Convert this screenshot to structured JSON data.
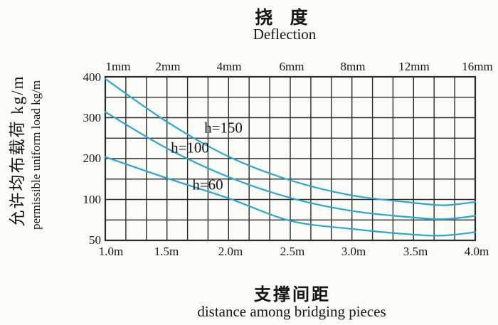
{
  "header": {
    "title_zh": "挠 度",
    "title_en": "Deflection"
  },
  "footer": {
    "title_zh": "支撑间距",
    "title_en": "distance among bridging pieces"
  },
  "y_axis_title": {
    "zh": "允许均布载荷 kg/m",
    "en": "permissible uniform load kg/m"
  },
  "chart_data": {
    "type": "line",
    "title_zh": "挠度",
    "title_en": "Deflection",
    "top_axis": {
      "ticks": [
        "1mm",
        "2mm",
        "4mm",
        "6mm",
        "8mm",
        "12mm",
        "16mm"
      ],
      "tick_values_mm": [
        1,
        2,
        4,
        6,
        8,
        12,
        16
      ],
      "note": "deflection scale, non-linear: labeled ticks equally spaced every 3rd gridline"
    },
    "bottom_axis": {
      "label_zh": "支撑间距",
      "label_en": "distance among bridging pieces",
      "ticks": [
        "1.0m",
        "1.5m",
        "2.0m",
        "2.5m",
        "3.0m",
        "3.5m",
        "4.0m"
      ],
      "tick_values_m": [
        1.0,
        1.5,
        2.0,
        2.5,
        3.0,
        3.5,
        4.0
      ]
    },
    "y_axis": {
      "label_zh": "允许均布载荷 kg/m",
      "label_en": "permissible uniform load kg/m",
      "ticks": [
        400,
        300,
        200,
        100,
        50
      ],
      "tick_labels": [
        "400",
        "300",
        "200",
        "100",
        "50"
      ],
      "ylim": [
        50,
        400
      ],
      "scale": "piecewise-linear: labeled ticks equally spaced every 2nd gridline"
    },
    "x": [
      1.0,
      1.5,
      2.0,
      2.5,
      3.0,
      3.5,
      3.75,
      4.0
    ],
    "xlim": [
      1.0,
      4.0
    ],
    "series": [
      {
        "name": "h=150",
        "values": [
          395,
          290,
          205,
          147,
          110,
          96,
          93,
          97
        ]
      },
      {
        "name": "h=100",
        "values": [
          314,
          225,
          155,
          104,
          86,
          78,
          76,
          80
        ]
      },
      {
        "name": "h=60",
        "values": [
          204,
          152,
          103,
          74,
          64,
          57,
          56,
          60
        ]
      }
    ],
    "grid": {
      "on": true,
      "x_divisions": 18,
      "y_divisions": 8
    },
    "line_color": "#2aa7d4",
    "grid_color": "#2a2a2a",
    "legend": "inline curve labels inside plot"
  }
}
